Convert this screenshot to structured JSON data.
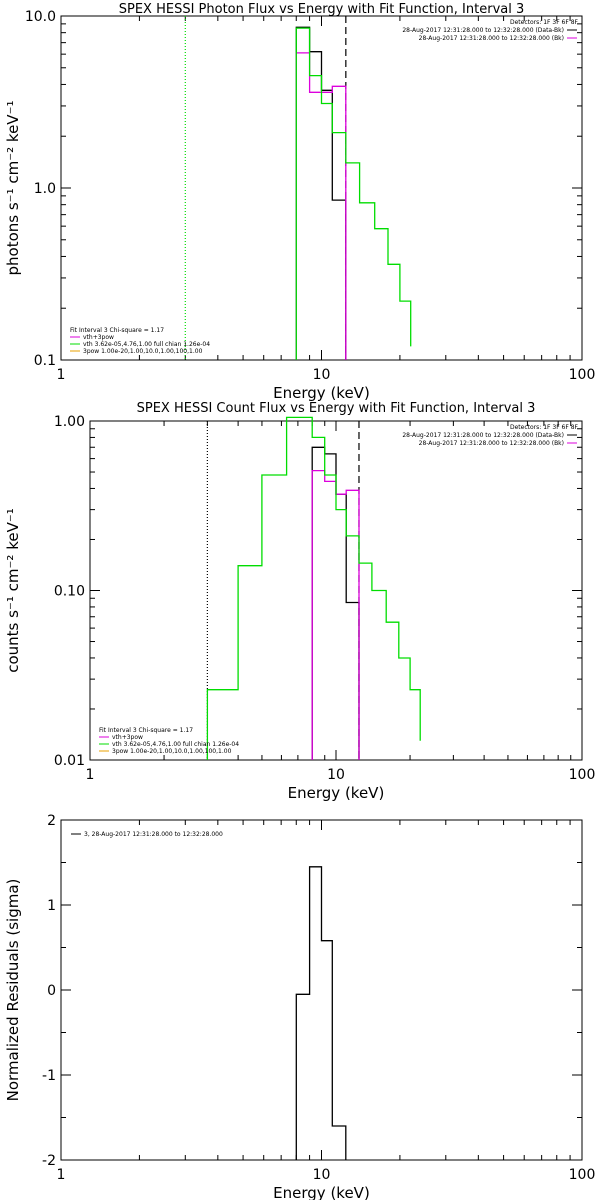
{
  "colors": {
    "black": "#000000",
    "green": "#00dd00",
    "magenta": "#dd00dd",
    "orange": "#e8a000"
  },
  "chart_data": [
    {
      "type": "line",
      "title": "SPEX HESSI Photon Flux vs Energy with Fit Function, Interval 3",
      "xlabel": "Energy (keV)",
      "ylabel": "photons s⁻¹ cm⁻² keV⁻¹",
      "xscale": "log",
      "yscale": "log",
      "xlim": [
        1,
        100
      ],
      "ylim": [
        0.1,
        10
      ],
      "xticks": [
        {
          "v": 1,
          "t": "1"
        },
        {
          "v": 10,
          "t": "10"
        },
        {
          "v": 100,
          "t": "100"
        }
      ],
      "yticks": [
        {
          "v": 0.1,
          "t": "0.1"
        },
        {
          "v": 1,
          "t": "1.0"
        },
        {
          "v": 10,
          "t": "10.0"
        }
      ],
      "vlines": [
        {
          "x": 3.0,
          "style": "dotted",
          "color": "#00dd00"
        },
        {
          "x": 12.4,
          "style": "dashed",
          "color": "#000000"
        }
      ],
      "legend_top": {
        "header": "Detectors: 1F 3F 6F 8F",
        "entries": [
          {
            "label": "28-Aug-2017 12:31:28.000 to 12:32:28.000 (Data-Bk)",
            "color": "#000000"
          },
          {
            "label": "28-Aug-2017 12:31:28.000 to 12:32:28.000 (Bk)",
            "color": "#dd00dd"
          }
        ]
      },
      "legend_bottom": {
        "header": "Fit Interval 3   Chi-square = 1.17",
        "entries": [
          {
            "label": "vth+3pow",
            "color": "#dd00dd"
          },
          {
            "label": "vth 3.62e-05,4.76,1.00  full chian 1.26e-04",
            "color": "#00dd00"
          },
          {
            "label": "3pow 1.00e-20,1.00,10.0,1.00,100,1.00",
            "color": "#e8a000"
          }
        ]
      },
      "series": [
        {
          "name": "Data-Bk",
          "color": "#000000",
          "edges": [
            8.0,
            9.0,
            10.0,
            11.0,
            12.4
          ],
          "values": [
            8.6,
            6.2,
            3.7,
            0.85
          ]
        },
        {
          "name": "Bk",
          "color": "#dd00dd",
          "edges": [
            8.0,
            9.0,
            10.0,
            11.0,
            12.4
          ],
          "values": [
            6.1,
            3.6,
            3.6,
            3.9
          ]
        },
        {
          "name": "vth",
          "color": "#00dd00",
          "edges": [
            8.0,
            9.0,
            10.0,
            11.0,
            12.4,
            14.0,
            16.0,
            18.0,
            20.0,
            22.0
          ],
          "values": [
            8.5,
            4.5,
            3.1,
            2.1,
            1.4,
            0.82,
            0.58,
            0.36,
            0.22,
            0.12
          ]
        }
      ]
    },
    {
      "type": "line",
      "title": "SPEX HESSI Count Flux vs Energy with Fit Function, Interval 3",
      "xlabel": "Energy (keV)",
      "ylabel": "counts s⁻¹ cm⁻² keV⁻¹",
      "xscale": "log",
      "yscale": "log",
      "xlim": [
        1,
        100
      ],
      "ylim": [
        0.01,
        1
      ],
      "xticks": [
        {
          "v": 1,
          "t": "1"
        },
        {
          "v": 10,
          "t": "10"
        },
        {
          "v": 100,
          "t": "100"
        }
      ],
      "yticks": [
        {
          "v": 0.01,
          "t": "0.01"
        },
        {
          "v": 0.1,
          "t": "0.10"
        },
        {
          "v": 1,
          "t": "1.00"
        }
      ],
      "vlines": [
        {
          "x": 3.0,
          "style": "dotted",
          "color": "#000000"
        },
        {
          "x": 12.4,
          "style": "dashed",
          "color": "#000000"
        }
      ],
      "legend_top": {
        "header": "Detectors: 1F 3F 6F 8F",
        "entries": [
          {
            "label": "28-Aug-2017 12:31:28.000 to 12:32:28.000 (Data-Bk)",
            "color": "#000000"
          },
          {
            "label": "28-Aug-2017 12:31:28.000 to 12:32:28.000 (Bk)",
            "color": "#dd00dd"
          }
        ]
      },
      "legend_bottom": {
        "header": "Fit Interval 3   Chi-square = 1.17",
        "entries": [
          {
            "label": "vth+3pow",
            "color": "#dd00dd"
          },
          {
            "label": "vth 3.62e-05,4.76,1.00  full chian 1.26e-04",
            "color": "#00dd00"
          },
          {
            "label": "3pow 1.00e-20,1.00,10.0,1.00,100,1.00",
            "color": "#e8a000"
          }
        ]
      },
      "series": [
        {
          "name": "Data-Bk",
          "color": "#000000",
          "edges": [
            8.0,
            9.0,
            10.0,
            11.0,
            12.4
          ],
          "values": [
            0.7,
            0.64,
            0.37,
            0.085
          ]
        },
        {
          "name": "Bk",
          "color": "#dd00dd",
          "edges": [
            8.0,
            9.0,
            10.0,
            11.0,
            12.4
          ],
          "values": [
            0.51,
            0.44,
            0.37,
            0.39
          ]
        },
        {
          "name": "vth",
          "color": "#00dd00",
          "edges": [
            3.0,
            4.0,
            5.0,
            6.3,
            8.0,
            9.0,
            10.0,
            11.0,
            12.4,
            14.0,
            16.0,
            18.0,
            20.0,
            22.0
          ],
          "values": [
            0.026,
            0.14,
            0.48,
            1.05,
            0.8,
            0.48,
            0.3,
            0.21,
            0.145,
            0.1,
            0.065,
            0.04,
            0.026,
            0.013
          ]
        }
      ]
    },
    {
      "type": "line",
      "title": "",
      "xlabel": "Energy (keV)",
      "ylabel": "Normalized Residuals (sigma)",
      "xscale": "log",
      "yscale": "linear",
      "xlim": [
        1,
        100
      ],
      "ylim": [
        -2,
        2
      ],
      "xticks": [
        {
          "v": 1,
          "t": "1"
        },
        {
          "v": 10,
          "t": "10"
        },
        {
          "v": 100,
          "t": "100"
        }
      ],
      "yticks": [
        {
          "v": -2,
          "t": "-2"
        },
        {
          "v": -1,
          "t": "-1"
        },
        {
          "v": 0,
          "t": "0"
        },
        {
          "v": 1,
          "t": "1"
        },
        {
          "v": 2,
          "t": "2"
        }
      ],
      "minor_yticks": [
        -1.5,
        -0.5,
        0.5,
        1.5
      ],
      "legend_top": {
        "header": "",
        "entries": [
          {
            "label": "3, 28-Aug-2017 12:31:28.000 to 12:32:28.000",
            "color": "#000000"
          }
        ]
      },
      "series": [
        {
          "name": "Residuals",
          "color": "#000000",
          "edges": [
            8.0,
            9.0,
            10.0,
            11.0,
            12.4
          ],
          "values": [
            -0.05,
            1.45,
            0.58,
            -1.6
          ]
        }
      ]
    }
  ]
}
